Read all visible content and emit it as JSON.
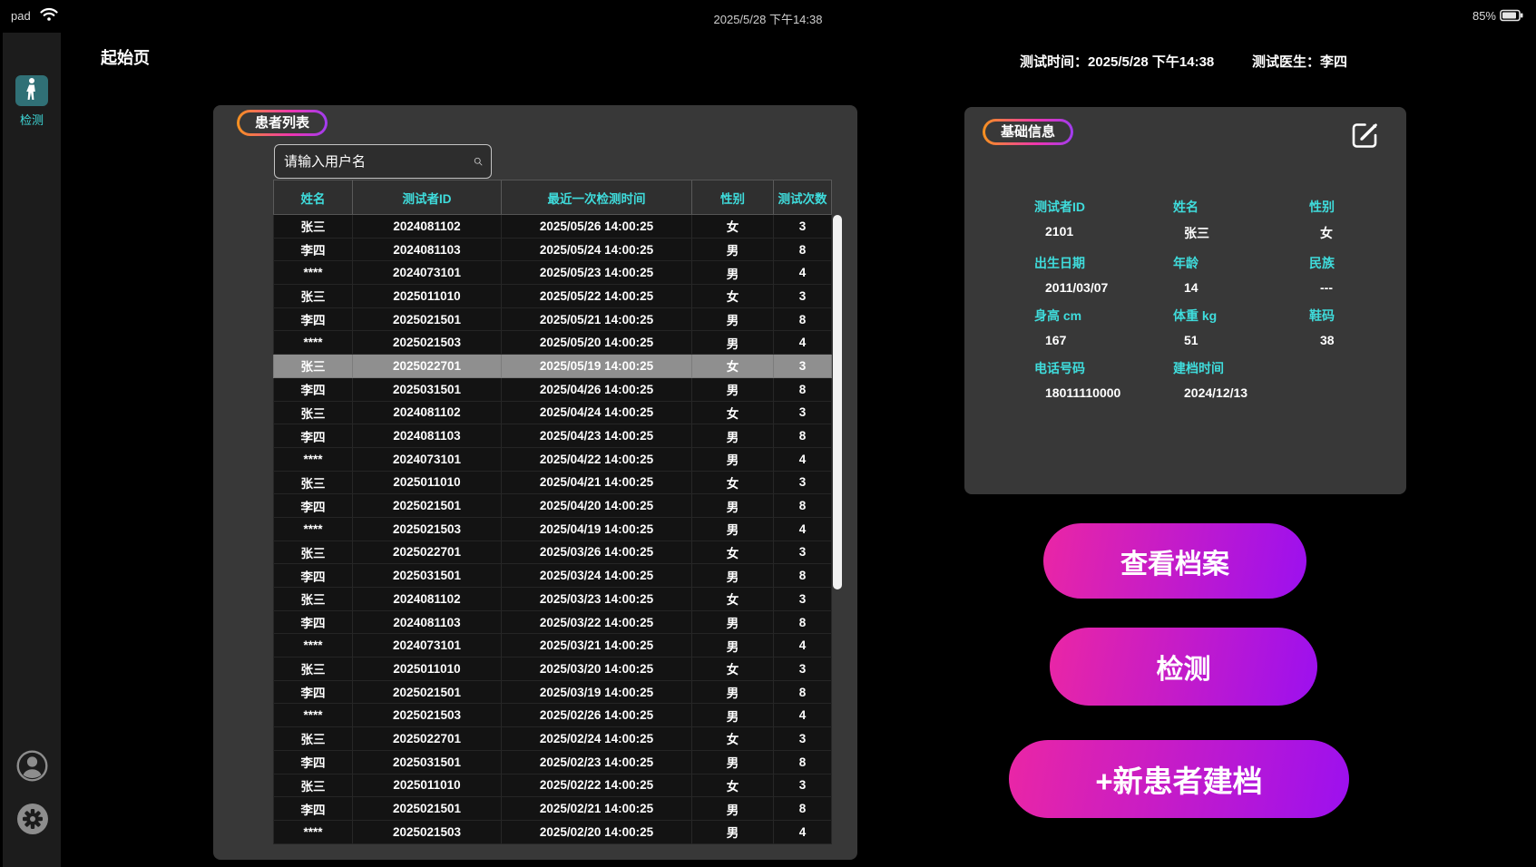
{
  "status_bar": {
    "device": "pad",
    "time": "2025/5/28 下午14:38",
    "battery": "85%"
  },
  "sidebar": {
    "nav_label": "检测"
  },
  "header": {
    "page_title": "起始页",
    "test_time_label": "测试时间：",
    "test_time": "2025/5/28 下午14:38",
    "doctor_label": "测试医生：",
    "doctor": "李四"
  },
  "patient_panel": {
    "title": "患者列表",
    "search_placeholder": "请输入用户名",
    "columns": [
      "姓名",
      "测试者ID",
      "最近一次检测时间",
      "性别",
      "测试次数"
    ],
    "selected_index": 6,
    "rows": [
      [
        "张三",
        "2024081102",
        "2025/05/26 14:00:25",
        "女",
        "3"
      ],
      [
        "李四",
        "2024081103",
        "2025/05/24 14:00:25",
        "男",
        "8"
      ],
      [
        "****",
        "2024073101",
        "2025/05/23 14:00:25",
        "男",
        "4"
      ],
      [
        "张三",
        "2025011010",
        "2025/05/22 14:00:25",
        "女",
        "3"
      ],
      [
        "李四",
        "2025021501",
        "2025/05/21 14:00:25",
        "男",
        "8"
      ],
      [
        "****",
        "2025021503",
        "2025/05/20 14:00:25",
        "男",
        "4"
      ],
      [
        "张三",
        "2025022701",
        "2025/05/19 14:00:25",
        "女",
        "3"
      ],
      [
        "李四",
        "2025031501",
        "2025/04/26 14:00:25",
        "男",
        "8"
      ],
      [
        "张三",
        "2024081102",
        "2025/04/24 14:00:25",
        "女",
        "3"
      ],
      [
        "李四",
        "2024081103",
        "2025/04/23 14:00:25",
        "男",
        "8"
      ],
      [
        "****",
        "2024073101",
        "2025/04/22 14:00:25",
        "男",
        "4"
      ],
      [
        "张三",
        "2025011010",
        "2025/04/21 14:00:25",
        "女",
        "3"
      ],
      [
        "李四",
        "2025021501",
        "2025/04/20 14:00:25",
        "男",
        "8"
      ],
      [
        "****",
        "2025021503",
        "2025/04/19 14:00:25",
        "男",
        "4"
      ],
      [
        "张三",
        "2025022701",
        "2025/03/26 14:00:25",
        "女",
        "3"
      ],
      [
        "李四",
        "2025031501",
        "2025/03/24 14:00:25",
        "男",
        "8"
      ],
      [
        "张三",
        "2024081102",
        "2025/03/23 14:00:25",
        "女",
        "3"
      ],
      [
        "李四",
        "2024081103",
        "2025/03/22 14:00:25",
        "男",
        "8"
      ],
      [
        "****",
        "2024073101",
        "2025/03/21 14:00:25",
        "男",
        "4"
      ],
      [
        "张三",
        "2025011010",
        "2025/03/20 14:00:25",
        "女",
        "3"
      ],
      [
        "李四",
        "2025021501",
        "2025/03/19 14:00:25",
        "男",
        "8"
      ],
      [
        "****",
        "2025021503",
        "2025/02/26 14:00:25",
        "男",
        "4"
      ],
      [
        "张三",
        "2025022701",
        "2025/02/24 14:00:25",
        "女",
        "3"
      ],
      [
        "李四",
        "2025031501",
        "2025/02/23 14:00:25",
        "男",
        "8"
      ],
      [
        "张三",
        "2025011010",
        "2025/02/22 14:00:25",
        "女",
        "3"
      ],
      [
        "李四",
        "2025021501",
        "2025/02/21 14:00:25",
        "男",
        "8"
      ],
      [
        "****",
        "2025021503",
        "2025/02/20 14:00:25",
        "男",
        "4"
      ]
    ]
  },
  "info_panel": {
    "title": "基础信息",
    "fields": [
      {
        "label": "测试者ID",
        "value": "2101"
      },
      {
        "label": "姓名",
        "value": "张三"
      },
      {
        "label": "性别",
        "value": "女"
      },
      {
        "label": "出生日期",
        "value": "2011/03/07"
      },
      {
        "label": "年龄",
        "value": "14"
      },
      {
        "label": "民族",
        "value": "---"
      },
      {
        "label": "身高 cm",
        "value": "167"
      },
      {
        "label": "体重 kg",
        "value": "51"
      },
      {
        "label": "鞋码",
        "value": "38"
      },
      {
        "label": "电话号码",
        "value": "18011110000"
      },
      {
        "label": "建档时间",
        "value": "2024/12/13"
      }
    ]
  },
  "actions": [
    {
      "label": "查看档案"
    },
    {
      "label": "检测"
    },
    {
      "label": "+新患者建档"
    }
  ],
  "colors": {
    "c-accent": "#3fdcdc",
    "c-teal": "#307076",
    "c-selected": "#8f8f8f",
    "c-pill1": "#f6921e",
    "c-pill2": "#ee35b0",
    "c-pill3": "#a03cf0",
    "c-grad1": "#ea26a5",
    "c-grad2": "#9c10ef"
  }
}
